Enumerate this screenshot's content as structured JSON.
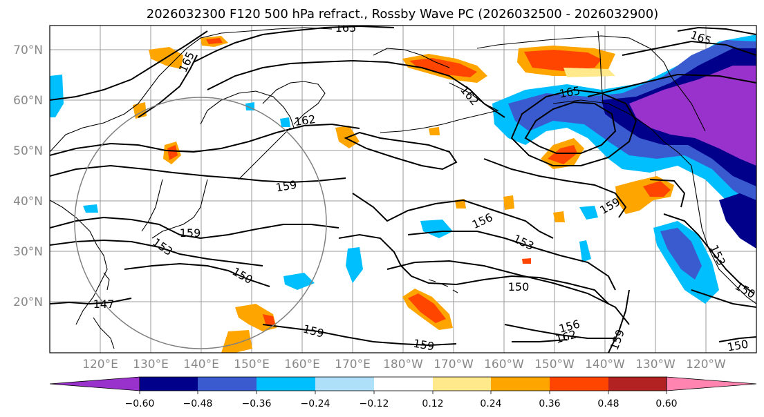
{
  "title": "2026032300 F120 500 hPa refract., Rossby Wave PC (2026032500 - 2026032900)",
  "lat_labels": [
    "70°N",
    "60°N",
    "50°N",
    "40°N",
    "30°N",
    "20°N"
  ],
  "lon_labels": [
    "120°E",
    "130°E",
    "140°E",
    "150°E",
    "160°E",
    "170°E",
    "180°W",
    "170°W",
    "160°W",
    "150°W",
    "140°W",
    "130°W",
    "120°W"
  ],
  "colorbar": {
    "colors": [
      "#9932cc",
      "#00008b",
      "#3a5bcf",
      "#00bfff",
      "#aee0fa",
      "#ffffff",
      "#ffe98a",
      "#ffa500",
      "#ff4500",
      "#b22222",
      "#ff85b0"
    ],
    "tick_labels": [
      "−0.60",
      "−0.48",
      "−0.36",
      "−0.24",
      "−0.12",
      "0.12",
      "0.24",
      "0.36",
      "0.48",
      "0.60"
    ]
  },
  "contour_labels": [
    "165",
    "165",
    "165",
    "165",
    "162",
    "162",
    "162",
    "159",
    "159",
    "159",
    "159",
    "159",
    "159",
    "156",
    "156",
    "153",
    "153",
    "153",
    "150",
    "150",
    "150",
    "150",
    "147"
  ],
  "circle_color": "#808080",
  "grid_color": "#999999"
}
